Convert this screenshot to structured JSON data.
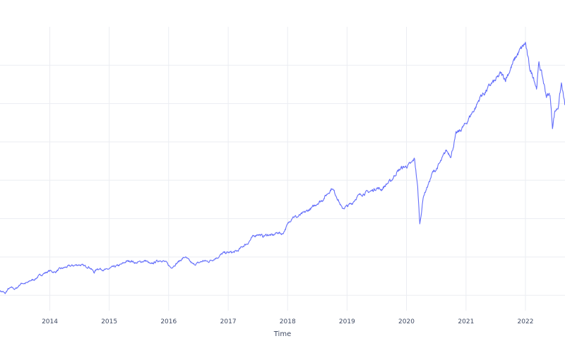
{
  "chart_data": {
    "type": "line",
    "title": "",
    "xlabel": "Time",
    "ylabel": "",
    "x_ticks": [
      "2014",
      "2015",
      "2016",
      "2017",
      "2018",
      "2019",
      "2020",
      "2021",
      "2022"
    ],
    "xlim": [
      "2013-03-01",
      "2022-09-01"
    ],
    "ylim": [
      1300,
      5000
    ],
    "y_gridlines": [
      1500,
      2000,
      2500,
      3000,
      3500,
      4000,
      4500
    ],
    "grid": true,
    "line_color": "#636efa",
    "series": [
      {
        "points": [
          [
            "2013-03-01",
            1560
          ],
          [
            "2013-03-10",
            1550
          ],
          [
            "2013-03-20",
            1545
          ],
          [
            "2013-04-01",
            1520
          ],
          [
            "2013-04-10",
            1550
          ],
          [
            "2013-04-20",
            1580
          ],
          [
            "2013-05-01",
            1590
          ],
          [
            "2013-05-15",
            1600
          ],
          [
            "2013-06-01",
            1580
          ],
          [
            "2013-06-15",
            1600
          ],
          [
            "2013-07-01",
            1640
          ],
          [
            "2013-07-15",
            1660
          ],
          [
            "2013-08-01",
            1655
          ],
          [
            "2013-08-20",
            1665
          ],
          [
            "2013-09-01",
            1690
          ],
          [
            "2013-10-01",
            1710
          ],
          [
            "2013-11-01",
            1760
          ],
          [
            "2013-12-01",
            1790
          ],
          [
            "2014-01-01",
            1820
          ],
          [
            "2014-02-01",
            1800
          ],
          [
            "2014-03-01",
            1840
          ],
          [
            "2014-04-01",
            1860
          ],
          [
            "2014-05-01",
            1880
          ],
          [
            "2014-06-01",
            1890
          ],
          [
            "2014-07-01",
            1900
          ],
          [
            "2014-08-01",
            1880
          ],
          [
            "2014-09-01",
            1870
          ],
          [
            "2014-10-01",
            1800
          ],
          [
            "2014-10-20",
            1850
          ],
          [
            "2014-11-15",
            1840
          ],
          [
            "2014-12-15",
            1830
          ],
          [
            "2015-01-15",
            1860
          ],
          [
            "2015-02-15",
            1880
          ],
          [
            "2015-03-15",
            1900
          ],
          [
            "2015-04-15",
            1940
          ],
          [
            "2015-05-15",
            1950
          ],
          [
            "2015-06-15",
            1920
          ],
          [
            "2015-07-15",
            1940
          ],
          [
            "2015-08-15",
            1950
          ],
          [
            "2015-09-15",
            1900
          ],
          [
            "2015-10-15",
            1940
          ],
          [
            "2015-11-15",
            1960
          ],
          [
            "2015-12-15",
            1930
          ],
          [
            "2016-01-15",
            1860
          ],
          [
            "2016-02-15",
            1910
          ],
          [
            "2016-03-15",
            1960
          ],
          [
            "2016-04-10",
            2000
          ],
          [
            "2016-05-01",
            1960
          ],
          [
            "2016-06-01",
            1900
          ],
          [
            "2016-07-01",
            1920
          ],
          [
            "2016-08-01",
            1950
          ],
          [
            "2016-09-01",
            1940
          ],
          [
            "2016-10-01",
            1970
          ],
          [
            "2016-11-01",
            2000
          ],
          [
            "2016-12-01",
            2050
          ],
          [
            "2017-01-15",
            2060
          ],
          [
            "2017-02-01",
            2060
          ],
          [
            "2017-03-01",
            2080
          ],
          [
            "2017-04-01",
            2140
          ],
          [
            "2017-05-01",
            2180
          ],
          [
            "2017-06-01",
            2260
          ],
          [
            "2017-07-01",
            2300
          ],
          [
            "2017-08-01",
            2270
          ],
          [
            "2017-09-01",
            2290
          ],
          [
            "2017-10-01",
            2280
          ],
          [
            "2017-11-01",
            2320
          ],
          [
            "2017-12-01",
            2300
          ],
          [
            "2018-01-01",
            2420
          ],
          [
            "2018-02-01",
            2530
          ],
          [
            "2018-03-01",
            2520
          ],
          [
            "2018-04-01",
            2560
          ],
          [
            "2018-05-01",
            2600
          ],
          [
            "2018-06-01",
            2640
          ],
          [
            "2018-07-01",
            2700
          ],
          [
            "2018-08-01",
            2740
          ],
          [
            "2018-09-01",
            2820
          ],
          [
            "2018-10-01",
            2900
          ],
          [
            "2018-11-01",
            2780
          ],
          [
            "2018-12-01",
            2630
          ],
          [
            "2019-01-01",
            2660
          ],
          [
            "2019-02-01",
            2700
          ],
          [
            "2019-03-01",
            2780
          ],
          [
            "2019-04-01",
            2820
          ],
          [
            "2019-05-01",
            2840
          ],
          [
            "2019-06-01",
            2860
          ],
          [
            "2019-07-01",
            2900
          ],
          [
            "2019-08-01",
            2880
          ],
          [
            "2019-09-01",
            2950
          ],
          [
            "2019-10-01",
            3000
          ],
          [
            "2019-11-01",
            3100
          ],
          [
            "2019-12-01",
            3160
          ],
          [
            "2020-01-01",
            3180
          ],
          [
            "2020-02-01",
            3220
          ],
          [
            "2020-02-20",
            3280
          ],
          [
            "2020-03-10",
            2900
          ],
          [
            "2020-03-23",
            2430
          ],
          [
            "2020-04-15",
            2800
          ],
          [
            "2020-05-15",
            2950
          ],
          [
            "2020-06-10",
            3100
          ],
          [
            "2020-07-01",
            3140
          ],
          [
            "2020-08-01",
            3250
          ],
          [
            "2020-09-01",
            3390
          ],
          [
            "2020-10-01",
            3320
          ],
          [
            "2020-11-01",
            3600
          ],
          [
            "2020-12-01",
            3660
          ],
          [
            "2021-01-01",
            3740
          ],
          [
            "2021-02-01",
            3860
          ],
          [
            "2021-03-01",
            3950
          ],
          [
            "2021-04-01",
            4100
          ],
          [
            "2021-05-01",
            4150
          ],
          [
            "2021-06-01",
            4250
          ],
          [
            "2021-07-01",
            4300
          ],
          [
            "2021-08-01",
            4390
          ],
          [
            "2021-09-01",
            4320
          ],
          [
            "2021-10-01",
            4450
          ],
          [
            "2021-11-01",
            4600
          ],
          [
            "2021-12-01",
            4700
          ],
          [
            "2022-01-01",
            4790
          ],
          [
            "2022-01-15",
            4600
          ],
          [
            "2022-02-01",
            4420
          ],
          [
            "2022-02-20",
            4350
          ],
          [
            "2022-03-10",
            4200
          ],
          [
            "2022-03-25",
            4530
          ],
          [
            "2022-04-15",
            4350
          ],
          [
            "2022-05-10",
            4100
          ],
          [
            "2022-06-01",
            4120
          ],
          [
            "2022-06-16",
            3700
          ],
          [
            "2022-07-01",
            3900
          ],
          [
            "2022-07-20",
            3950
          ],
          [
            "2022-08-10",
            4260
          ],
          [
            "2022-08-31",
            3980
          ]
        ]
      }
    ]
  }
}
